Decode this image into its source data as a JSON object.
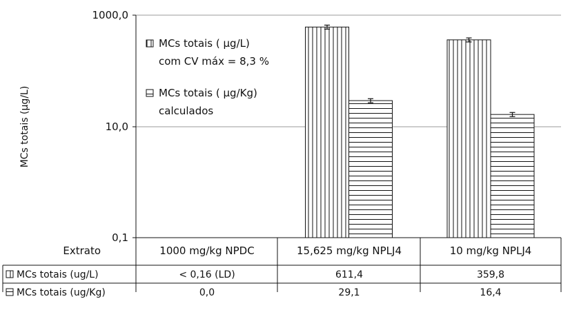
{
  "chart_data": {
    "type": "bar",
    "scale": "log",
    "ylabel": "MCs totais  (µg/L)",
    "ylim": [
      0.1,
      1000
    ],
    "yticks": [
      "1000,0",
      "10,0",
      "0,1"
    ],
    "grid": true,
    "legend_position": "top-left",
    "categories": [
      "1000 mg/kg NPDC",
      "15,625 mg/kg NPLJ4",
      "10 mg/kg NPLJ4"
    ],
    "series": [
      {
        "name_line1": "MCs totais ( µg/L)",
        "name_line2": "com CV máx = 8,3 %",
        "pattern": "vertical-stripes",
        "values": [
          0.0,
          611.4,
          359.8
        ],
        "error": [
          0,
          50.7,
          29.9
        ]
      },
      {
        "name_line1": "MCs totais ( µg/Kg)",
        "name_line2": "calculados",
        "pattern": "horizontal-stripes",
        "values": [
          0.0,
          29.1,
          16.4
        ],
        "error": [
          0,
          2.4,
          1.4
        ]
      }
    ],
    "table": {
      "header_label": "Extrato",
      "rows": [
        {
          "label": "MCs totais (ug/L)",
          "values": [
            "< 0,16 (LD)",
            "611,4",
            "359,8"
          ]
        },
        {
          "label": "MCs totais (ug/Kg)",
          "values": [
            "0,0",
            "29,1",
            "16,4"
          ]
        }
      ]
    }
  }
}
